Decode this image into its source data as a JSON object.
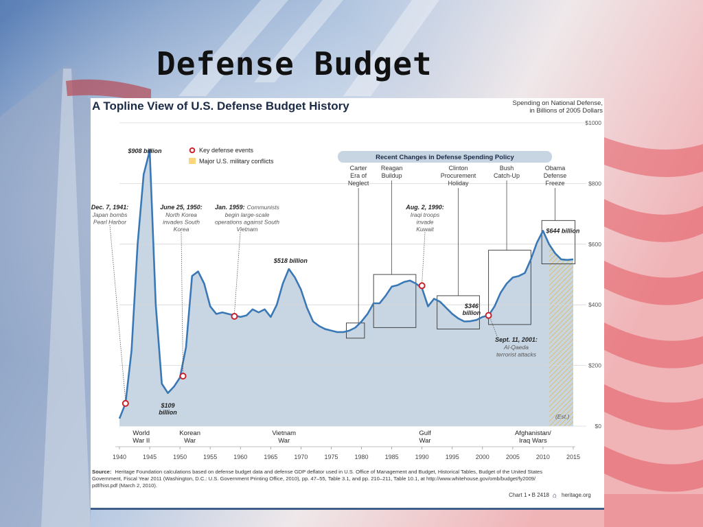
{
  "slide": {
    "title": "Defense Budget"
  },
  "chart_data": {
    "type": "area",
    "title": "A Topline View of U.S. Defense Budget History",
    "subtitle_line1": "Spending on National Defense,",
    "subtitle_line2": "in Billions of 2005 Dollars",
    "xlabel": "",
    "ylabel": "",
    "xlim": [
      1940,
      2015
    ],
    "ylim": [
      0,
      1000
    ],
    "x_ticks": [
      1940,
      1945,
      1950,
      1955,
      1960,
      1965,
      1970,
      1975,
      1980,
      1985,
      1990,
      1995,
      2000,
      2005,
      2010,
      2015
    ],
    "y_ticks": [
      0,
      200,
      400,
      600,
      800,
      1000
    ],
    "y_tick_labels": [
      "$0",
      "$200",
      "$400",
      "$600",
      "$800",
      "$1000"
    ],
    "series": [
      {
        "x": [
          1940,
          1941,
          1942,
          1943,
          1944,
          1945,
          1946,
          1947,
          1948,
          1949,
          1950,
          1951,
          1952,
          1953,
          1954,
          1955,
          1956,
          1957,
          1958,
          1959,
          1960,
          1961,
          1962,
          1963,
          1964,
          1965,
          1966,
          1967,
          1968,
          1969,
          1970,
          1971,
          1972,
          1973,
          1974,
          1975,
          1976,
          1977,
          1978,
          1979,
          1980,
          1981,
          1982,
          1983,
          1984,
          1985,
          1986,
          1987,
          1988,
          1989,
          1990,
          1991,
          1992,
          1993,
          1994,
          1995,
          1996,
          1997,
          1998,
          1999,
          2000,
          2001,
          2002,
          2003,
          2004,
          2005,
          2006,
          2007,
          2008,
          2009,
          2010,
          2011,
          2012,
          2013,
          2014,
          2015
        ],
        "values": [
          25,
          75,
          250,
          600,
          830,
          908,
          400,
          140,
          109,
          130,
          160,
          260,
          495,
          510,
          470,
          395,
          370,
          375,
          370,
          365,
          360,
          365,
          385,
          375,
          385,
          360,
          400,
          470,
          518,
          490,
          450,
          390,
          345,
          330,
          320,
          315,
          310,
          310,
          315,
          325,
          345,
          370,
          405,
          405,
          430,
          460,
          465,
          475,
          480,
          470,
          455,
          395,
          420,
          410,
          390,
          370,
          355,
          345,
          346,
          350,
          360,
          365,
          395,
          440,
          470,
          490,
          495,
          505,
          550,
          605,
          644,
          600,
          570,
          550,
          548,
          550
        ]
      }
    ],
    "legend": {
      "placement": "top-left",
      "entries": [
        "Key defense events",
        "Major U.S. military conflicts"
      ]
    },
    "wars": [
      {
        "label_line1": "World",
        "label_line2": "War II",
        "start": 1941.9,
        "end": 1945.3
      },
      {
        "label_line1": "Korean",
        "label_line2": "War",
        "start": 1950.1,
        "end": 1953.2
      },
      {
        "label_line1": "Vietnam",
        "label_line2": "War",
        "start": 1959.2,
        "end": 1975.2
      },
      {
        "label_line1": "Gulf",
        "label_line2": "War",
        "start": 1990.0,
        "end": 1991.0
      },
      {
        "label_line1": "Afghanistan/",
        "label_line2": "Iraq Wars",
        "start": 2001.7,
        "end": 2015.0
      }
    ],
    "estimate_start": 2011,
    "estimate_label": "(Est.)",
    "value_labels": [
      {
        "text": "$908 billion",
        "x": 1945
      },
      {
        "text_line1": "$109",
        "text_line2": "billion",
        "x": 1948
      },
      {
        "text": "$518 billion",
        "x": 1968
      },
      {
        "text_line1": "$346",
        "text_line2": "billion",
        "x": 1998
      },
      {
        "text": "$644 billion",
        "x": 2010
      }
    ],
    "events": [
      {
        "x": 1941,
        "y": 75,
        "date": "Dec. 7, 1941:",
        "desc_lines": [
          "Japan bombs",
          "Pearl Harbor"
        ]
      },
      {
        "x": 1950.5,
        "y": 165,
        "date": "June 25, 1950:",
        "desc_lines": [
          "North Korea",
          "invades South",
          "Korea"
        ]
      },
      {
        "x": 1959,
        "y": 362,
        "date": "Jan. 1959:",
        "desc_first": "Communists",
        "desc_lines": [
          "begin large-scale",
          "operations against South",
          "Vietnam"
        ]
      },
      {
        "x": 1990,
        "y": 463,
        "date": "Aug. 2, 1990:",
        "desc_lines": [
          "Iraqi troops",
          "invade",
          "Kuwait"
        ]
      },
      {
        "x": 2001,
        "y": 365,
        "date": "Sept. 11, 2001:",
        "desc_lines": [
          "Al-Qaeda",
          "terrorist attacks"
        ]
      }
    ],
    "policy_header": "Recent Changes in Defense Spending Policy",
    "policies": [
      {
        "lines": [
          "Carter",
          "Era of",
          "Neglect"
        ]
      },
      {
        "lines": [
          "Reagan",
          "Buildup"
        ]
      },
      {
        "lines": [
          "Clinton",
          "Procurement",
          "Holiday"
        ]
      },
      {
        "lines": [
          "Bush",
          "Catch-Up"
        ]
      },
      {
        "lines": [
          "Obama",
          "Defense",
          "Freeze"
        ]
      }
    ],
    "source_label": "Source:",
    "source_line1": "Heritage Foundation calculations based on defense budget data and defense GDP deflator used in U.S. Office of Management and Budget, Historical Tables, Budget of the United States",
    "source_line2": "Government, Fiscal Year 2011 (Washington, D.C.: U.S. Government Printing Office, 2010), pp. 47–55, Table 3.1, and pp. 210–211, Table 10.1, at http://www.whitehouse.gov/omb/budget/fy2009/",
    "source_line3": "pdf/hist.pdf (March 2, 2010).",
    "credit_chart": "Chart 1 • B 2418",
    "credit_site": "heritage.org",
    "colors": {
      "line": "#3a78b5",
      "area": "#c8d6e3",
      "war": "#fcd67a",
      "event": "#c8202c",
      "policy_bar": "#c7d4e2",
      "grid": "#d6d6d6"
    }
  }
}
